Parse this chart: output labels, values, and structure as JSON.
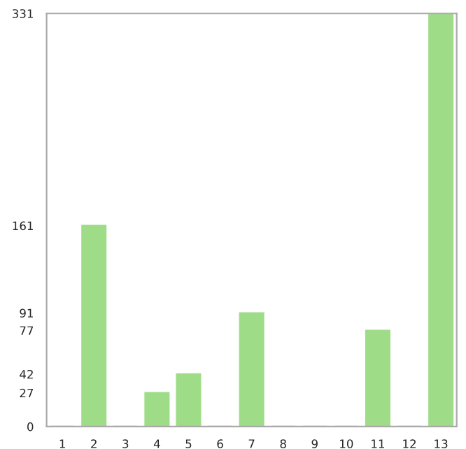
{
  "chart_data": {
    "type": "bar",
    "categories": [
      "1",
      "2",
      "3",
      "4",
      "5",
      "6",
      "7",
      "8",
      "9",
      "10",
      "11",
      "12",
      "13"
    ],
    "values": [
      0,
      161,
      0,
      27,
      42,
      0,
      91,
      0,
      0,
      0,
      77,
      0,
      331
    ],
    "color": "#9edc88",
    "ylim": [
      0,
      331
    ],
    "yticks": [
      0,
      27,
      42,
      77,
      91,
      161,
      331
    ],
    "grid": false
  }
}
